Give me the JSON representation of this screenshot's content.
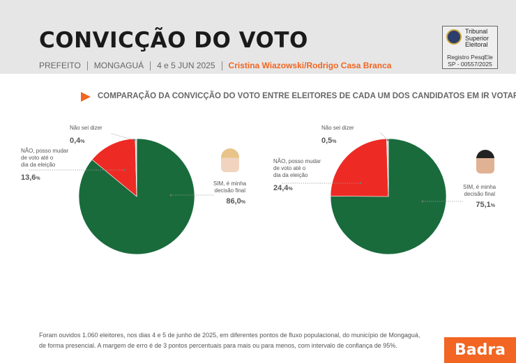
{
  "header": {
    "title": "CONVICÇÃO DO VOTO",
    "office": "PREFEITO",
    "city": "MONGAGUÁ",
    "date": "4 e 5 JUN 2025",
    "candidates": "Cristina Wiazowski/Rodrigo Casa Branca"
  },
  "tse": {
    "name_line1": "Tribunal",
    "name_line2": "Superior",
    "name_line3": "Eleitoral",
    "reg_line1": "Registro PesqEle",
    "reg_line2": "SP - 00557/2025"
  },
  "subtitle": "COMPARAÇÃO DA CONVICÇÃO DO VOTO ENTRE ELEITORES DE CADA UM DOS CANDIDATOS EM IR VOTAR",
  "colors": {
    "sim": "#1a6b3c",
    "nao": "#ee2a24",
    "nao_sei": "#d9d9d9",
    "accent": "#f26522"
  },
  "chart_data": [
    {
      "type": "pie",
      "candidate": "Cristina Wiazowski",
      "slices": [
        {
          "label_line1": "SIM, é minha",
          "label_line2": "decisão final",
          "value": 86.0,
          "value_text": "86,0",
          "unit": "%"
        },
        {
          "label_line1": "NÃO, posso mudar",
          "label_line2": "de voto até o",
          "label_line3": "dia da eleição",
          "value": 13.6,
          "value_text": "13,6",
          "unit": "%"
        },
        {
          "label_line1": "Não sei dizer",
          "value": 0.4,
          "value_text": "0,4",
          "unit": "%"
        }
      ]
    },
    {
      "type": "pie",
      "candidate": "Rodrigo Casa Branca",
      "slices": [
        {
          "label_line1": "SIM, é minha",
          "label_line2": "decisão final",
          "value": 75.1,
          "value_text": "75,1",
          "unit": "%"
        },
        {
          "label_line1": "NÃO, posso mudar",
          "label_line2": "de voto até o",
          "label_line3": "dia da eleição",
          "value": 24.4,
          "value_text": "24,4",
          "unit": "%"
        },
        {
          "label_line1": "Não sei dizer",
          "value": 0.5,
          "value_text": "0,5",
          "unit": "%"
        }
      ]
    }
  ],
  "footnote": {
    "line1": "Foram ouvidos 1.060 eleitores, nos dias 4 e 5 de junho de 2025, em diferentes pontos de fluxo populacional, do município de Mongaguá,",
    "line2": "de forma presencial. A margem de erro é de 3 pontos percentuais para mais ou para menos, com intervalo de confiança de 95%."
  },
  "logo": "Badra"
}
